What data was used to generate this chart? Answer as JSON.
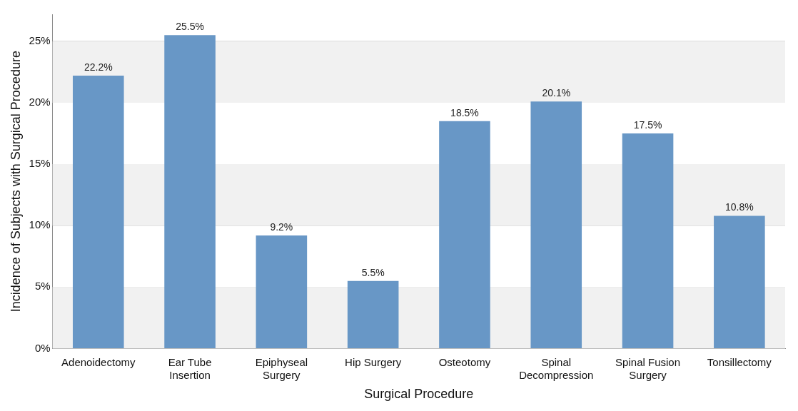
{
  "chart_data": {
    "type": "bar",
    "xlabel": "Surgical Procedure",
    "ylabel": "Incidence of Subjects with Surgical Procedure",
    "categories": [
      "Adenoidectomy",
      "Ear Tube Insertion",
      "Epiphyseal Surgery",
      "Hip Surgery",
      "Osteotomy",
      "Spinal Decompression",
      "Spinal Fusion Surgery",
      "Tonsillectomy"
    ],
    "values": [
      22.2,
      25.5,
      9.2,
      5.5,
      18.5,
      20.1,
      17.5,
      10.8
    ],
    "value_labels": [
      "22.2%",
      "25.5%",
      "9.2%",
      "5.5%",
      "18.5%",
      "20.1%",
      "17.5%",
      "10.8%"
    ],
    "color": "#6897c6",
    "ylim": [
      0,
      27.2
    ],
    "yticks": [
      {
        "value": 0,
        "label": "0%"
      },
      {
        "value": 5,
        "label": "5%"
      },
      {
        "value": 10,
        "label": "10%"
      },
      {
        "value": 15,
        "label": "15%"
      },
      {
        "value": 20,
        "label": "20%"
      },
      {
        "value": 25,
        "label": "25%"
      }
    ],
    "grid": "y",
    "legend": false
  }
}
